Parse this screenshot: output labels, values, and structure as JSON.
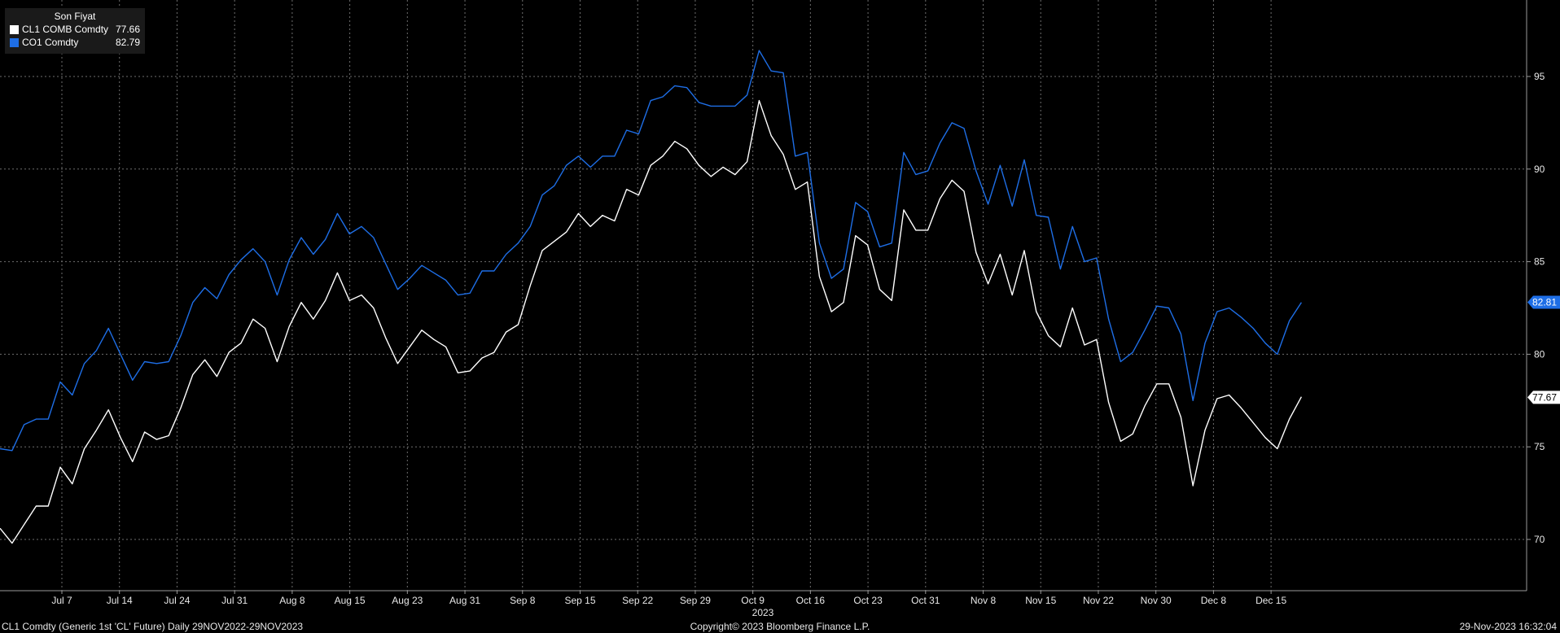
{
  "legend": {
    "title": "Son Fiyat",
    "items": [
      {
        "name": "CL1 COMB Comdty",
        "value": "77.66",
        "color": "#ffffff"
      },
      {
        "name": "CO1 Comdty",
        "value": "82.79",
        "color": "#1e6ee6"
      }
    ]
  },
  "footer": {
    "left": "CL1 Comdty (Generic 1st 'CL' Future)  Daily 29NOV2022-29NOV2023",
    "center": "Copyright© 2023 Bloomberg Finance L.P.",
    "right": "29-Nov-2023 16:32:04"
  },
  "chart_data": {
    "type": "line",
    "x_tick_labels": [
      "Jul 7",
      "Jul 14",
      "Jul 24",
      "Jul 31",
      "Aug 8",
      "Aug 15",
      "Aug 23",
      "Aug 31",
      "Sep 8",
      "Sep 15",
      "Sep 22",
      "Sep 29",
      "Oct 9",
      "Oct 16",
      "Oct 23",
      "Oct 31",
      "Nov 8",
      "Nov 15",
      "Nov 22",
      "Nov 30",
      "Dec 8",
      "Dec 15"
    ],
    "x_year_label": "2023",
    "y_ticks": [
      70,
      75,
      80,
      85,
      90,
      95
    ],
    "ylim": [
      67.5,
      98.5
    ],
    "grid": true,
    "legend_position": "top-left",
    "last_value_labels": [
      "82.81",
      "77.67"
    ],
    "series": [
      {
        "name": "CL1 COMB Comdty",
        "color": "#ffffff",
        "values": [
          70.6,
          69.8,
          70.8,
          71.8,
          71.8,
          73.9,
          73.0,
          74.9,
          75.9,
          77.0,
          75.5,
          74.2,
          75.8,
          75.4,
          75.6,
          77.1,
          78.9,
          79.7,
          78.8,
          80.1,
          80.6,
          81.9,
          81.4,
          79.6,
          81.5,
          82.8,
          81.9,
          82.9,
          84.4,
          82.9,
          83.2,
          82.5,
          80.9,
          79.5,
          80.4,
          81.3,
          80.8,
          80.4,
          79.0,
          79.1,
          79.8,
          80.1,
          81.2,
          81.6,
          83.7,
          85.6,
          86.1,
          86.6,
          87.6,
          86.9,
          87.5,
          87.2,
          88.9,
          88.6,
          90.2,
          90.7,
          91.5,
          91.1,
          90.2,
          89.6,
          90.1,
          89.7,
          90.4,
          93.7,
          91.8,
          90.8,
          88.9,
          89.3,
          84.2,
          82.3,
          82.8,
          86.4,
          85.9,
          83.5,
          82.9,
          87.8,
          86.7,
          86.7,
          88.4,
          89.4,
          88.8,
          85.5,
          83.8,
          85.4,
          83.2,
          85.6,
          82.3,
          81.0,
          80.4,
          82.5,
          80.5,
          80.8,
          77.4,
          75.3,
          75.7,
          77.2,
          78.4,
          78.4,
          76.6,
          72.9,
          75.9,
          77.6,
          77.8,
          77.1,
          76.3,
          75.5,
          74.9,
          76.5,
          77.7
        ]
      },
      {
        "name": "CO1 Comdty",
        "color": "#1e6ee6",
        "values": [
          74.9,
          74.8,
          76.2,
          76.5,
          76.5,
          78.5,
          77.8,
          79.5,
          80.2,
          81.4,
          80.0,
          78.6,
          79.6,
          79.5,
          79.6,
          81.0,
          82.8,
          83.6,
          83.0,
          84.3,
          85.1,
          85.7,
          85.0,
          83.2,
          85.1,
          86.3,
          85.4,
          86.2,
          87.6,
          86.5,
          86.9,
          86.3,
          84.9,
          83.5,
          84.1,
          84.8,
          84.4,
          84.0,
          83.2,
          83.3,
          84.5,
          84.5,
          85.4,
          86.0,
          86.9,
          88.6,
          89.1,
          90.2,
          90.7,
          90.1,
          90.7,
          90.7,
          92.1,
          91.9,
          93.7,
          93.9,
          94.5,
          94.4,
          93.6,
          93.4,
          93.4,
          93.4,
          94.0,
          96.4,
          95.3,
          95.2,
          90.7,
          90.9,
          86.0,
          84.1,
          84.6,
          88.2,
          87.7,
          85.8,
          86.0,
          90.9,
          89.7,
          89.9,
          91.4,
          92.5,
          92.2,
          89.9,
          88.1,
          90.2,
          88.0,
          90.5,
          87.5,
          87.4,
          84.6,
          86.9,
          85.0,
          85.2,
          81.9,
          79.6,
          80.1,
          81.3,
          82.6,
          82.5,
          81.1,
          77.5,
          80.6,
          82.3,
          82.5,
          82.0,
          81.4,
          80.6,
          80.0,
          81.8,
          82.8
        ]
      }
    ]
  }
}
